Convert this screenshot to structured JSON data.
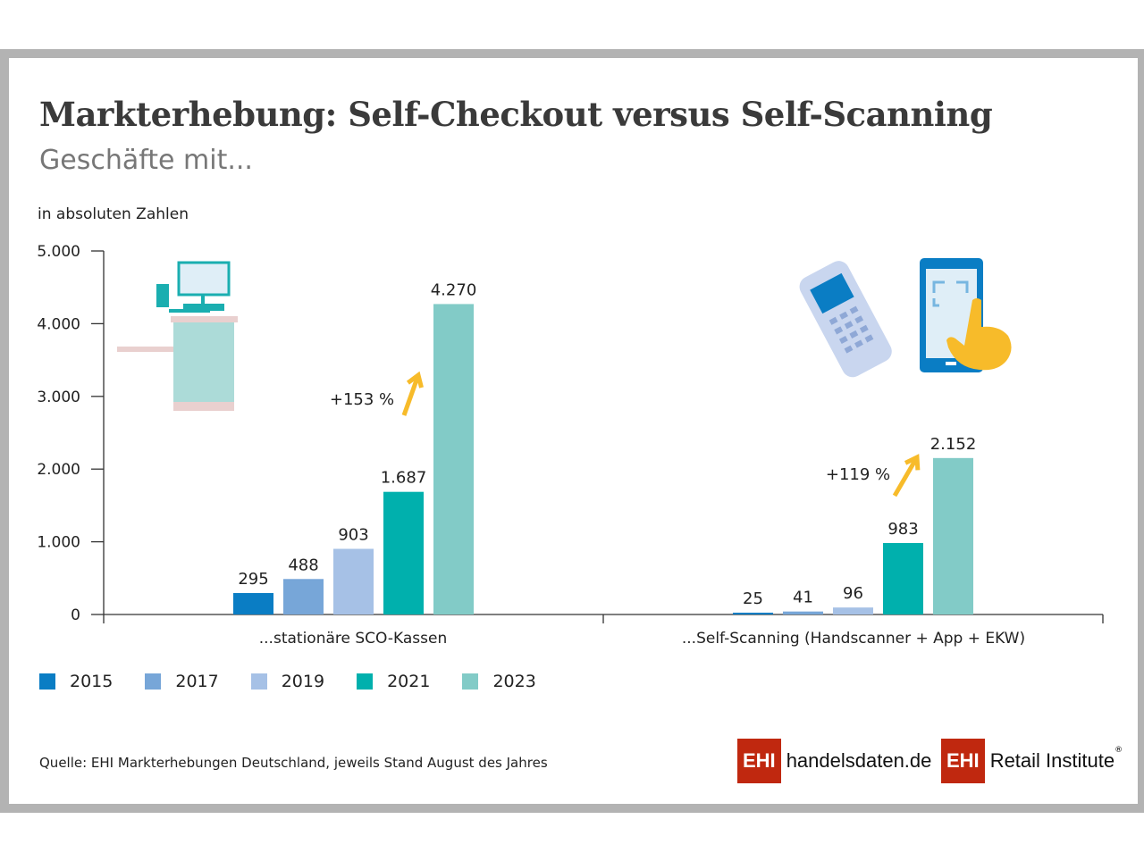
{
  "title": "Markterhebung: Self-Checkout versus Self-Scanning",
  "subtitle": "Geschäfte mit...",
  "source": "Quelle: EHI Markterhebungen Deutschland, jeweils Stand August des Jahres",
  "logos": {
    "ehi": "EHI",
    "handelsdaten": "handelsdaten.de",
    "retail": "Retail Institute",
    "registered": "®"
  },
  "chart_data": {
    "type": "bar",
    "ylabel": "in absoluten Zahlen",
    "ylim": [
      0,
      5000
    ],
    "yticks": [
      "0",
      "1.000",
      "2.000",
      "3.000",
      "4.000",
      "5.000"
    ],
    "categories": [
      "...stationäre SCO-Kassen",
      "...Self-Scanning (Handscanner + App + EKW)"
    ],
    "series": [
      {
        "name": "2015",
        "color": "#0a7dc4",
        "values": [
          295,
          25
        ],
        "labels": [
          "295",
          "25"
        ]
      },
      {
        "name": "2017",
        "color": "#77a6d8",
        "values": [
          488,
          41
        ],
        "labels": [
          "488",
          "41"
        ]
      },
      {
        "name": "2019",
        "color": "#a6c1e6",
        "values": [
          903,
          96
        ],
        "labels": [
          "903",
          "96"
        ]
      },
      {
        "name": "2021",
        "color": "#00b0ad",
        "values": [
          1687,
          983
        ],
        "labels": [
          "1.687",
          "983"
        ]
      },
      {
        "name": "2023",
        "color": "#82cbc7",
        "values": [
          4270,
          2152
        ],
        "labels": [
          "4.270",
          "2.152"
        ]
      }
    ],
    "annotations": [
      "+153 %",
      "+119 %"
    ],
    "arrow_color": "#f7bb2a",
    "legend_position": "bottom-left",
    "grid": false
  }
}
